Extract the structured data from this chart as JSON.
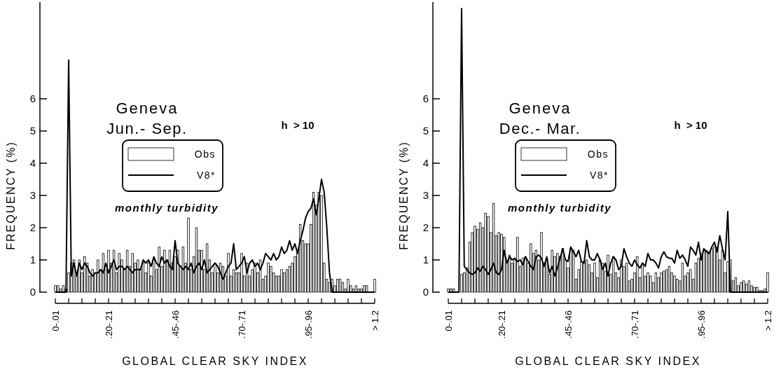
{
  "chart_data": [
    {
      "type": "bar",
      "title": "Geneva",
      "subtitle": "Jun.- Sep.",
      "xlabel": "GLOBAL CLEAR SKY INDEX",
      "ylabel": "FREQUENCY (%)",
      "annotations": [
        "h  > 10",
        "monthly turbidity"
      ],
      "legend": "center",
      "categories": [
        "0-.01",
        null,
        null,
        null,
        null,
        null,
        null,
        null,
        null,
        null,
        null,
        null,
        null,
        null,
        null,
        null,
        null,
        null,
        null,
        null,
        ".20-.21",
        null,
        null,
        null,
        null,
        null,
        null,
        null,
        null,
        null,
        null,
        null,
        null,
        null,
        null,
        null,
        null,
        null,
        null,
        null,
        null,
        null,
        null,
        null,
        null,
        ".45-.46",
        null,
        null,
        null,
        null,
        null,
        null,
        null,
        null,
        null,
        null,
        null,
        null,
        null,
        null,
        null,
        null,
        null,
        null,
        null,
        null,
        null,
        null,
        null,
        null,
        ".70-.71",
        null,
        null,
        null,
        null,
        null,
        null,
        null,
        null,
        null,
        null,
        null,
        null,
        null,
        null,
        null,
        null,
        null,
        null,
        null,
        null,
        null,
        null,
        null,
        null,
        ".95-.96",
        null,
        null,
        null,
        null,
        null,
        null,
        null,
        null,
        null,
        null,
        null,
        null,
        null,
        null,
        null,
        null,
        null,
        null,
        null,
        null,
        null,
        null,
        null,
        null,
        "> 1.2"
      ],
      "ylim": [
        0,
        9
      ],
      "yticks": [
        0,
        1,
        2,
        3,
        4,
        5,
        6
      ],
      "series": [
        {
          "name": "Obs",
          "color": "#000000",
          "values": [
            0.2,
            0.2,
            0.1,
            0.2,
            0.1,
            0.6,
            0.9,
            1.0,
            0.5,
            1.0,
            0.6,
            1.1,
            0.9,
            0.5,
            0.7,
            0.6,
            1.0,
            0.7,
            1.2,
            0.7,
            1.3,
            0.9,
            1.3,
            0.6,
            1.2,
            1.0,
            0.7,
            1.3,
            0.8,
            1.2,
            0.9,
            1.0,
            0.7,
            0.9,
            0.6,
            0.9,
            0.5,
            1.0,
            0.7,
            1.4,
            0.8,
            1.3,
            1.0,
            1.3,
            0.9,
            1.1,
            1.3,
            0.8,
            1.4,
            0.9,
            2.3,
            0.7,
            1.1,
            2.0,
            1.3,
            1.3,
            0.7,
            1.5,
            1.0,
            0.6,
            0.9,
            0.6,
            0.9,
            0.8,
            0.5,
            1.2,
            0.5,
            0.7,
            0.6,
            0.6,
            1.2,
            0.5,
            0.9,
            0.5,
            0.7,
            0.9,
            0.6,
            1.0,
            0.4,
            0.5,
            0.9,
            0.8,
            0.6,
            0.5,
            0.5,
            0.7,
            0.6,
            0.7,
            0.8,
            0.9,
            1.1,
            1.3,
            2.1,
            1.6,
            1.5,
            1.5,
            2.1,
            3.1,
            2.7,
            3.1,
            3.0,
            0.9,
            0.4,
            0.3,
            0.4,
            0.2,
            0.4,
            0.4,
            0.3,
            0.1,
            0.4,
            0.2,
            0.1,
            0.2,
            0.1,
            0.1,
            0.2,
            0.2,
            0.0,
            0.0,
            0.4
          ]
        },
        {
          "name": "V8*",
          "type": "line",
          "color": "#000000",
          "values": [
            0,
            0,
            0,
            0,
            0,
            7.2,
            0.5,
            0.9,
            0.5,
            0.9,
            0.7,
            0.9,
            0.8,
            0.6,
            0.5,
            0.6,
            0.6,
            0.7,
            0.6,
            0.9,
            0.6,
            0.8,
            1.0,
            0.7,
            0.8,
            0.8,
            0.7,
            0.8,
            0.7,
            0.6,
            0.7,
            0.7,
            0.7,
            1.0,
            0.9,
            1.0,
            0.8,
            1.1,
            0.9,
            0.8,
            1.1,
            0.9,
            1.0,
            0.8,
            0.7,
            1.6,
            0.9,
            0.8,
            0.7,
            0.8,
            0.7,
            0.9,
            0.6,
            0.8,
            0.9,
            0.7,
            1.0,
            0.6,
            0.7,
            0.8,
            0.9,
            0.8,
            0.6,
            0.4,
            0.6,
            0.8,
            0.9,
            1.5,
            0.7,
            0.8,
            0.9,
            1.1,
            0.6,
            0.9,
            1.0,
            0.8,
            0.9,
            0.7,
            0.9,
            1.2,
            1.1,
            1.0,
            1.2,
            1.0,
            1.1,
            1.4,
            1.2,
            1.3,
            1.6,
            1.3,
            1.5,
            1.2,
            1.6,
            1.9,
            2.3,
            2.5,
            2.6,
            2.9,
            2.4,
            2.9,
            3.5,
            3.1,
            2.0,
            0.6,
            0.0,
            0,
            0,
            0,
            0,
            0,
            0,
            0,
            0,
            0,
            0,
            0,
            0,
            0,
            0,
            0,
            0
          ]
        }
      ]
    },
    {
      "type": "bar",
      "title": "Geneva",
      "subtitle": "Dec.- Mar.",
      "xlabel": "GLOBAL CLEAR SKY INDEX",
      "ylabel": "FREQUENCY (%)",
      "annotations": [
        "h  > 10",
        "monthly turbidity"
      ],
      "legend": "center",
      "categories": [
        "0-.01",
        null,
        null,
        null,
        null,
        null,
        null,
        null,
        null,
        null,
        null,
        null,
        null,
        null,
        null,
        null,
        null,
        null,
        null,
        null,
        ".20-.21",
        null,
        null,
        null,
        null,
        null,
        null,
        null,
        null,
        null,
        null,
        null,
        null,
        null,
        null,
        null,
        null,
        null,
        null,
        null,
        null,
        null,
        null,
        null,
        null,
        ".45-.46",
        null,
        null,
        null,
        null,
        null,
        null,
        null,
        null,
        null,
        null,
        null,
        null,
        null,
        null,
        null,
        null,
        null,
        null,
        null,
        null,
        null,
        null,
        null,
        null,
        ".70-.71",
        null,
        null,
        null,
        null,
        null,
        null,
        null,
        null,
        null,
        null,
        null,
        null,
        null,
        null,
        null,
        null,
        null,
        null,
        null,
        null,
        null,
        null,
        null,
        null,
        ".95-.96",
        null,
        null,
        null,
        null,
        null,
        null,
        null,
        null,
        null,
        null,
        null,
        null,
        null,
        null,
        null,
        null,
        null,
        null,
        null,
        null,
        null,
        null,
        null,
        null,
        "> 1.2"
      ],
      "ylim": [
        0,
        9
      ],
      "yticks": [
        0,
        1,
        2,
        3,
        4,
        5,
        6
      ],
      "series": [
        {
          "name": "Obs",
          "color": "#000000",
          "values": [
            0.1,
            0.1,
            0.1,
            0,
            0,
            0.55,
            0.6,
            0.75,
            1.55,
            1.85,
            2.05,
            1.95,
            2.15,
            2.0,
            2.45,
            2.35,
            1.85,
            2.75,
            1.75,
            1.85,
            1.8,
            1.7,
            0.95,
            1.15,
            0.9,
            1.0,
            1.7,
            0.8,
            1.05,
            1.1,
            0.9,
            1.5,
            1.2,
            1.3,
            1.0,
            1.85,
            0.9,
            1.05,
            0.55,
            1.3,
            1.1,
            1.2,
            1.1,
            1.35,
            1.0,
            0.75,
            1.35,
            1.3,
            0.4,
            0.7,
            0.95,
            0.95,
            1.0,
            0.85,
            0.6,
            0.9,
            0.45,
            1.0,
            0.9,
            0.65,
            1.15,
            0.55,
            1.1,
            0.6,
            0.45,
            1.0,
            0.8,
            0.9,
            0.35,
            0.4,
            0.6,
            1.1,
            0.45,
            0.9,
            0.5,
            0.6,
            0.5,
            0.3,
            0.6,
            0.45,
            0.6,
            0.65,
            0.7,
            0.8,
            0.6,
            0.5,
            0.4,
            0.35,
            0.9,
            0.5,
            0.6,
            0.7,
            0.4,
            0.9,
            1.05,
            1.2,
            1.3,
            1.3,
            1.25,
            1.35,
            1.4,
            1.4,
            1.0,
            1.3,
            0.6,
            0.95,
            1.0,
            0.35,
            0.45,
            0.2,
            0.3,
            0.35,
            0.25,
            0.35,
            0.2,
            0.15,
            0.15,
            0.05,
            0.05,
            0.1,
            0.6
          ]
        },
        {
          "name": "V8*",
          "type": "line",
          "color": "#000000",
          "values": [
            0,
            0,
            0,
            0,
            0,
            8.8,
            0.8,
            0.7,
            0.6,
            0.55,
            0.6,
            0.75,
            0.65,
            0.8,
            0.7,
            0.55,
            0.7,
            0.9,
            0.6,
            0.55,
            0.7,
            1.3,
            0.9,
            1.1,
            1.0,
            1.05,
            0.95,
            1.0,
            0.85,
            1.1,
            0.95,
            0.8,
            0.7,
            1.1,
            1.15,
            1.05,
            0.8,
            1.1,
            0.6,
            0.8,
            0.5,
            0.75,
            1.05,
            1.35,
            1.0,
            0.95,
            1.4,
            1.25,
            1.1,
            1.3,
            0.95,
            0.9,
            1.6,
            1.1,
            1.0,
            1.0,
            1.2,
            1.0,
            0.7,
            0.9,
            0.5,
            0.9,
            1.1,
            1.0,
            0.7,
            0.8,
            1.35,
            1.1,
            0.9,
            0.8,
            1.0,
            0.85,
            0.75,
            0.9,
            0.8,
            1.2,
            1.0,
            1.0,
            0.9,
            0.75,
            1.1,
            1.25,
            1.1,
            1.05,
            1.05,
            0.9,
            1.3,
            1.05,
            1.15,
            1.0,
            0.8,
            1.4,
            1.3,
            1.15,
            1.55,
            1.0,
            1.35,
            1.25,
            1.2,
            1.4,
            1.55,
            1.25,
            1.75,
            1.35,
            1.0,
            2.5,
            0.0,
            0,
            0,
            0,
            0,
            0,
            0,
            0,
            0,
            0,
            0,
            0,
            0,
            0,
            0
          ]
        }
      ]
    }
  ]
}
